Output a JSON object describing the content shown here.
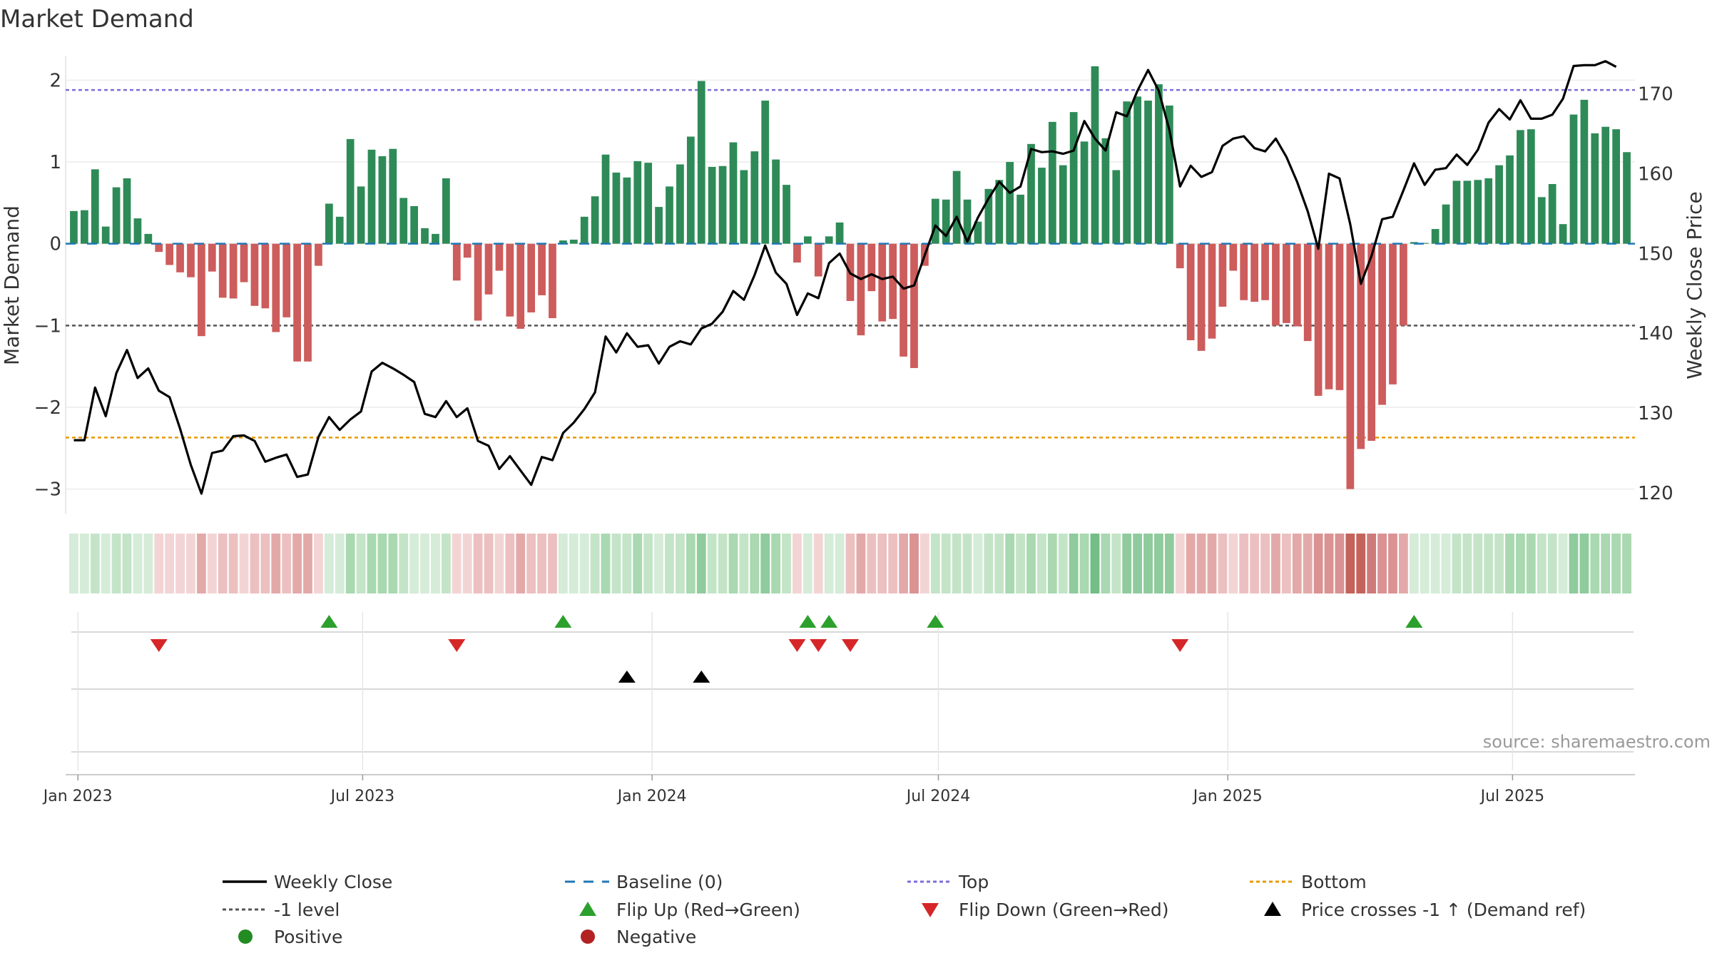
{
  "chart_data": {
    "type": "bar",
    "title": "Market Demand",
    "source": "source: sharemaestro.com",
    "ylabel": "Market Demand",
    "y2label": "Weekly Close Price",
    "ylim": [
      -3.3,
      2.3
    ],
    "y2lim": [
      117.4,
      174.8
    ],
    "yticks": [
      2,
      1,
      0,
      -1,
      -2,
      -3
    ],
    "ytick_labels": [
      "2",
      "1",
      "0",
      "−1",
      "−2",
      "−3"
    ],
    "y2ticks": [
      170,
      160,
      150,
      140,
      130,
      120
    ],
    "date_range": [
      "2022-12-26",
      "2025-09-15"
    ],
    "xticks": [
      {
        "date": "2023-01-01",
        "label": "Jan 2023"
      },
      {
        "date": "2023-07-01",
        "label": "Jul 2023"
      },
      {
        "date": "2024-01-01",
        "label": "Jan 2024"
      },
      {
        "date": "2024-07-01",
        "label": "Jul 2024"
      },
      {
        "date": "2025-01-01",
        "label": "Jan 2025"
      },
      {
        "date": "2025-07-01",
        "label": "Jul 2025"
      }
    ],
    "reference_lines": [
      {
        "name": "top",
        "value": 1.88,
        "color": "#7b6fd6"
      },
      {
        "name": "minus1",
        "value": -1.0,
        "color": "#555555"
      },
      {
        "name": "bottom",
        "value": -2.37,
        "color": "#e69b00"
      }
    ],
    "colors": {
      "positive_bar": "#2e8b57",
      "negative_bar": "#cd5c5c",
      "price_line": "#000000",
      "baseline": "#1f77b4",
      "flip_up": "#2ca02c",
      "flip_down": "#d62728",
      "cross": "#000000"
    },
    "series": [
      {
        "name": "Market Demand",
        "values": [
          0.4,
          0.41,
          0.91,
          0.21,
          0.69,
          0.8,
          0.31,
          0.12,
          -0.1,
          -0.26,
          -0.35,
          -0.41,
          -1.13,
          -0.34,
          -0.66,
          -0.67,
          -0.47,
          -0.76,
          -0.79,
          -1.08,
          -0.9,
          -1.44,
          -1.44,
          -0.27,
          0.49,
          0.33,
          1.28,
          0.7,
          1.15,
          1.07,
          1.16,
          0.56,
          0.46,
          0.19,
          0.12,
          0.8,
          -0.45,
          -0.17,
          -0.94,
          -0.62,
          -0.33,
          -0.89,
          -1.04,
          -0.84,
          -0.63,
          -0.91,
          0.04,
          0.05,
          0.33,
          0.58,
          1.09,
          0.87,
          0.81,
          1.01,
          0.99,
          0.45,
          0.7,
          0.97,
          1.31,
          1.99,
          0.94,
          0.95,
          1.24,
          0.9,
          1.13,
          1.75,
          1.03,
          0.72,
          -0.23,
          0.09,
          -0.4,
          0.09,
          0.26,
          -0.7,
          -1.12,
          -0.58,
          -0.95,
          -0.92,
          -1.38,
          -1.52,
          -0.27,
          0.55,
          0.54,
          0.89,
          0.54,
          0.27,
          0.67,
          0.78,
          1.0,
          0.6,
          1.22,
          0.93,
          1.49,
          0.96,
          1.61,
          1.25,
          2.17,
          1.29,
          0.9,
          1.74,
          1.8,
          1.75,
          1.95,
          1.69,
          -0.3,
          -1.18,
          -1.31,
          -1.16,
          -0.77,
          -0.33,
          -0.69,
          -0.71,
          -0.69,
          -1.0,
          -0.97,
          -1.01,
          -1.19,
          -1.86,
          -1.78,
          -1.79,
          -3.0,
          -2.51,
          -2.41,
          -1.97,
          -1.72,
          -1.0,
          0.02,
          0.01,
          0.18,
          0.48,
          0.77,
          0.77,
          0.78,
          0.8,
          0.96,
          1.08,
          1.39,
          1.4,
          0.57,
          0.73,
          0.24,
          1.58,
          1.76,
          1.35,
          1.43,
          1.4,
          1.12
        ]
      },
      {
        "name": "Weekly Close",
        "values": [
          126.6,
          126.6,
          133.2,
          129.6,
          135.0,
          137.9,
          134.4,
          135.6,
          132.8,
          132.0,
          128.0,
          123.5,
          119.9,
          125.0,
          125.3,
          127.1,
          127.2,
          126.5,
          123.9,
          124.4,
          124.8,
          122.0,
          122.3,
          127.0,
          129.5,
          127.9,
          129.2,
          130.2,
          135.2,
          136.3,
          135.6,
          134.8,
          133.9,
          129.9,
          129.5,
          131.5,
          129.5,
          130.6,
          126.5,
          125.9,
          123.0,
          124.6,
          122.8,
          121.0,
          124.5,
          124.1,
          127.5,
          128.8,
          130.5,
          132.6,
          139.6,
          137.6,
          140.0,
          138.3,
          138.5,
          136.2,
          138.3,
          139.0,
          138.6,
          140.6,
          141.2,
          142.7,
          145.3,
          144.2,
          147.3,
          151.0,
          147.6,
          146.2,
          142.3,
          145.0,
          144.4,
          148.8,
          150.0,
          147.5,
          146.8,
          147.4,
          146.8,
          147.1,
          145.6,
          146.0,
          149.8,
          153.5,
          152.2,
          154.6,
          151.5,
          154.5,
          156.9,
          159.0,
          157.6,
          158.4,
          163.1,
          162.7,
          162.8,
          162.5,
          162.9,
          166.6,
          164.4,
          162.9,
          167.7,
          167.2,
          170.4,
          173.0,
          170.4,
          165.5,
          158.4,
          161.0,
          159.6,
          160.2,
          163.5,
          164.4,
          164.7,
          163.2,
          162.8,
          164.4,
          162.1,
          159.0,
          155.3,
          150.6,
          160.0,
          159.4,
          153.7,
          146.2,
          149.7,
          154.3,
          154.6,
          157.9,
          161.3,
          158.6,
          160.5,
          160.7,
          162.4,
          161.1,
          163.0,
          166.4,
          168.1,
          166.8,
          169.2,
          166.9,
          166.9,
          167.4,
          169.4,
          173.5,
          173.6,
          173.6,
          174.1,
          173.4
        ]
      }
    ],
    "color_strip_palette": {
      "pos": [
        "#d5ecd8",
        "#c4e4c8",
        "#a9d8b1",
        "#8fcb9c",
        "#74bd87",
        "#5aae72"
      ],
      "neg": [
        "#f3d4d4",
        "#ecc0c0",
        "#e3a9a9",
        "#da9292",
        "#cf7a7a",
        "#c4625c"
      ]
    },
    "flip_up_weeks": [
      24,
      46,
      69,
      71,
      81,
      126
    ],
    "flip_down_weeks": [
      8,
      36,
      68,
      70,
      73,
      104
    ],
    "cross_up_weeks": [
      52,
      59
    ],
    "legend": [
      {
        "key": "line",
        "label": "Weekly Close",
        "color": "#000000"
      },
      {
        "key": "baseline",
        "label": "Baseline (0)",
        "color": "#1f77b4"
      },
      {
        "key": "top",
        "label": "Top",
        "color": "#7b6fd6"
      },
      {
        "key": "bottom",
        "label": "Bottom",
        "color": "#e69b00"
      },
      {
        "key": "minus1",
        "label": "-1 level",
        "color": "#555555"
      },
      {
        "key": "flip_up",
        "label": "Flip Up (Red→Green)",
        "color": "#2ca02c"
      },
      {
        "key": "flip_down",
        "label": "Flip Down (Green→Red)",
        "color": "#d62728"
      },
      {
        "key": "cross",
        "label": "Price crosses -1 ↑ (Demand ref)",
        "color": "#000000"
      },
      {
        "key": "positive",
        "label": "Positive",
        "color": "#228b22"
      },
      {
        "key": "negative",
        "label": "Negative",
        "color": "#b22222"
      }
    ]
  }
}
